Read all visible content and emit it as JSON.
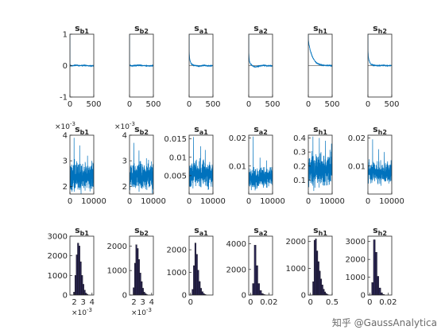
{
  "watermark": "知乎 @GaussAnalytica",
  "colors": {
    "trace": "#0072BD",
    "hist": "#2a2552",
    "axis": "#262626"
  },
  "chart_data": [
    {
      "type": "line",
      "panel": "acf",
      "title_main": "s",
      "title_sub": "b1",
      "xlim": [
        0,
        500
      ],
      "ylim": [
        -1,
        1
      ],
      "xticks": [
        0,
        500
      ],
      "yticks": [
        -1,
        0,
        1
      ],
      "lags": [
        0,
        1,
        2,
        5,
        10,
        20,
        50,
        100,
        200,
        300,
        400,
        500
      ],
      "acf": [
        1,
        0.04,
        0.02,
        0.01,
        0,
        0,
        -0.01,
        0.01,
        0,
        0.01,
        -0.01,
        0
      ]
    },
    {
      "type": "line",
      "panel": "acf",
      "title_main": "s",
      "title_sub": "b2",
      "xlim": [
        0,
        500
      ],
      "ylim": [
        -1,
        1
      ],
      "xticks": [
        0,
        500
      ],
      "yticks": [],
      "lags": [
        0,
        1,
        2,
        5,
        10,
        20,
        50,
        100,
        200,
        300,
        400,
        500
      ],
      "acf": [
        1,
        0.03,
        0.01,
        0,
        0.01,
        0,
        -0.01,
        0,
        0.01,
        0,
        -0.01,
        0
      ]
    },
    {
      "type": "line",
      "panel": "acf",
      "title_main": "s",
      "title_sub": "a1",
      "xlim": [
        0,
        500
      ],
      "ylim": [
        -1,
        1
      ],
      "xticks": [
        0,
        500
      ],
      "yticks": [],
      "lags": [
        0,
        1,
        5,
        10,
        20,
        40,
        60,
        100,
        150,
        200,
        300,
        400,
        500
      ],
      "acf": [
        1,
        0.5,
        0.35,
        0.25,
        0.15,
        0.07,
        0.03,
        0.01,
        0,
        -0.02,
        0.01,
        -0.01,
        0
      ]
    },
    {
      "type": "line",
      "panel": "acf",
      "title_main": "s",
      "title_sub": "a2",
      "xlim": [
        0,
        500
      ],
      "ylim": [
        -1,
        1
      ],
      "xticks": [
        0,
        500
      ],
      "yticks": [],
      "lags": [
        0,
        1,
        5,
        10,
        20,
        40,
        60,
        100,
        150,
        200,
        300,
        400,
        500
      ],
      "acf": [
        1,
        0.45,
        0.3,
        0.2,
        0.12,
        0.05,
        0.02,
        -0.03,
        -0.04,
        -0.02,
        0.01,
        -0.01,
        0
      ]
    },
    {
      "type": "line",
      "panel": "acf",
      "title_main": "s",
      "title_sub": "h1",
      "xlim": [
        0,
        500
      ],
      "ylim": [
        -1,
        1
      ],
      "xticks": [
        0,
        500
      ],
      "yticks": [],
      "lags": [
        0,
        1,
        10,
        20,
        40,
        60,
        80,
        100,
        150,
        200,
        250,
        300,
        400,
        500
      ],
      "acf": [
        1,
        0.82,
        0.72,
        0.63,
        0.5,
        0.39,
        0.3,
        0.23,
        0.12,
        0.06,
        0.03,
        0.01,
        0,
        0
      ]
    },
    {
      "type": "line",
      "panel": "acf",
      "title_main": "s",
      "title_sub": "h2",
      "xlim": [
        0,
        500
      ],
      "ylim": [
        -1,
        1
      ],
      "xticks": [
        0,
        500
      ],
      "yticks": [],
      "lags": [
        0,
        1,
        5,
        10,
        20,
        40,
        60,
        100,
        150,
        200,
        300,
        400,
        500
      ],
      "acf": [
        1,
        0.5,
        0.38,
        0.28,
        0.18,
        0.1,
        0.05,
        0.02,
        0.01,
        0,
        0.01,
        0,
        0
      ]
    },
    {
      "type": "line",
      "panel": "trace",
      "title_main": "s",
      "title_sub": "b1",
      "xlim": [
        0,
        10000
      ],
      "ylim": [
        1.7,
        4
      ],
      "xticks": [
        0,
        10000
      ],
      "yticks": [
        2,
        3,
        4
      ],
      "exponent_label": "×10",
      "exponent_power": "-3",
      "base": 2.4,
      "spread": 0.45,
      "spike_values": [
        3.9,
        3.6,
        3.2
      ]
    },
    {
      "type": "line",
      "panel": "trace",
      "title_main": "s",
      "title_sub": "b2",
      "xlim": [
        0,
        10000
      ],
      "ylim": [
        1.7,
        4
      ],
      "xticks": [
        0,
        10000
      ],
      "yticks": [
        2,
        3,
        4
      ],
      "exponent_label": "×10",
      "exponent_power": "-3",
      "base": 2.4,
      "spread": 0.42,
      "spike_values": [
        3.7,
        3.4,
        3.1
      ]
    },
    {
      "type": "line",
      "panel": "trace",
      "title_main": "s",
      "title_sub": "a1",
      "xlim": [
        0,
        10000
      ],
      "ylim": [
        0,
        0.016
      ],
      "xticks": [
        0,
        10000
      ],
      "yticks": [
        0.005,
        0.01,
        0.015
      ],
      "ytick_labels": [
        "0.005",
        "0.01",
        "0.015"
      ],
      "base": 0.0055,
      "spread": 0.0028,
      "spike_values": [
        0.0155,
        0.013,
        0.012
      ]
    },
    {
      "type": "line",
      "panel": "trace",
      "title_main": "s",
      "title_sub": "a2",
      "xlim": [
        0,
        10000
      ],
      "ylim": [
        0,
        0.021
      ],
      "xticks": [
        0,
        10000
      ],
      "yticks": [
        0.01,
        0.02
      ],
      "ytick_labels": [
        "0.01",
        "0.02"
      ],
      "base": 0.0058,
      "spread": 0.0028,
      "spike_values": [
        0.0205,
        0.013,
        0.012
      ]
    },
    {
      "type": "line",
      "panel": "trace",
      "title_main": "s",
      "title_sub": "h1",
      "xlim": [
        0,
        10000
      ],
      "ylim": [
        0,
        0.42
      ],
      "xticks": [
        0,
        10000
      ],
      "yticks": [
        0.1,
        0.2,
        0.3,
        0.4
      ],
      "ytick_labels": [
        "0.1",
        "0.2",
        "0.3",
        "0.4"
      ],
      "base": 0.17,
      "spread": 0.09,
      "spike_values": [
        0.41,
        0.4,
        0.38,
        0.36
      ]
    },
    {
      "type": "line",
      "panel": "trace",
      "title_main": "s",
      "title_sub": "h2",
      "xlim": [
        0,
        10000
      ],
      "ylim": [
        0,
        0.021
      ],
      "xticks": [
        0,
        10000
      ],
      "yticks": [
        0.01,
        0.02
      ],
      "ytick_labels": [
        "0.01",
        "0.02"
      ],
      "base": 0.0075,
      "spread": 0.003,
      "spike_values": [
        0.0195,
        0.016,
        0.015
      ]
    },
    {
      "type": "bar",
      "panel": "hist",
      "title_main": "s",
      "title_sub": "b1",
      "xlim": [
        1.5,
        4.2
      ],
      "ylim": [
        0,
        3000
      ],
      "xticks": [
        2,
        3,
        4
      ],
      "xtick_labels": [
        "2",
        "3",
        "4"
      ],
      "yticks": [
        0,
        1000,
        2000,
        3000
      ],
      "ytick_labels": [
        "0",
        "1000",
        "2000",
        "3000"
      ],
      "exponent_label": "×10",
      "exponent_power": "-3",
      "bin_edges": [
        1.9,
        2.05,
        2.2,
        2.35,
        2.5,
        2.65,
        2.8,
        2.95,
        3.1,
        3.25,
        3.4,
        3.55
      ],
      "counts": [
        150,
        1000,
        2050,
        2650,
        2500,
        1700,
        1000,
        550,
        250,
        100,
        40
      ]
    },
    {
      "type": "bar",
      "panel": "hist",
      "title_main": "s",
      "title_sub": "b2",
      "xlim": [
        1.5,
        4.2
      ],
      "ylim": [
        0,
        2400
      ],
      "xticks": [
        2,
        3,
        4
      ],
      "xtick_labels": [
        "2",
        "3",
        "4"
      ],
      "yticks": [
        0,
        1000,
        2000
      ],
      "ytick_labels": [
        "0",
        "1000",
        "2000"
      ],
      "exponent_label": "×10",
      "exponent_power": "-3",
      "bin_edges": [
        1.9,
        2.05,
        2.2,
        2.35,
        2.5,
        2.65,
        2.8,
        2.95,
        3.1,
        3.25,
        3.4,
        3.55
      ],
      "counts": [
        300,
        1300,
        2050,
        1900,
        1450,
        900,
        550,
        280,
        120,
        60,
        20
      ]
    },
    {
      "type": "bar",
      "panel": "hist",
      "title_main": "s",
      "title_sub": "a1",
      "xlim": [
        -0.001,
        0.016
      ],
      "ylim": [
        0,
        2600
      ],
      "xticks": [
        0
      ],
      "xtick_labels": [
        "0"
      ],
      "yticks": [
        0,
        1000,
        2000
      ],
      "ytick_labels": [
        "0",
        "1000",
        "2000"
      ],
      "bin_edges": [
        0.001,
        0.002,
        0.003,
        0.004,
        0.005,
        0.006,
        0.007,
        0.008,
        0.009,
        0.01,
        0.011
      ],
      "counts": [
        250,
        1300,
        2300,
        1800,
        1100,
        600,
        300,
        150,
        70,
        30
      ]
    },
    {
      "type": "bar",
      "panel": "hist",
      "title_main": "s",
      "title_sub": "a2",
      "xlim": [
        -0.002,
        0.024
      ],
      "ylim": [
        0,
        4600
      ],
      "xticks": [
        0,
        0.02
      ],
      "xtick_labels": [
        "0",
        "0.02"
      ],
      "yticks": [
        0,
        2000,
        4000
      ],
      "ytick_labels": [
        "0",
        "2000",
        "4000"
      ],
      "bin_edges": [
        0.002,
        0.004,
        0.006,
        0.008,
        0.01,
        0.012,
        0.014,
        0.016
      ],
      "counts": [
        900,
        3900,
        2300,
        900,
        350,
        120,
        40
      ]
    },
    {
      "type": "bar",
      "panel": "hist",
      "title_main": "s",
      "title_sub": "h1",
      "xlim": [
        -0.05,
        0.5
      ],
      "ylim": [
        0,
        2200
      ],
      "xticks": [
        0,
        0.5
      ],
      "xtick_labels": [
        "0",
        "0.5"
      ],
      "yticks": [
        0,
        1000,
        2000
      ],
      "ytick_labels": [
        "0",
        "1000",
        "2000"
      ],
      "bin_edges": [
        0.05,
        0.08,
        0.11,
        0.14,
        0.17,
        0.2,
        0.23,
        0.26,
        0.29,
        0.32,
        0.35,
        0.38,
        0.41
      ],
      "counts": [
        500,
        2050,
        2100,
        1650,
        1250,
        900,
        600,
        380,
        220,
        120,
        60,
        25
      ]
    },
    {
      "type": "bar",
      "panel": "hist",
      "title_main": "s",
      "title_sub": "h2",
      "xlim": [
        -0.002,
        0.024
      ],
      "ylim": [
        0,
        3300
      ],
      "xticks": [
        0,
        0.02
      ],
      "xtick_labels": [
        "0",
        "0.02"
      ],
      "yticks": [
        0,
        1000,
        2000,
        3000
      ],
      "ytick_labels": [
        "0",
        "1000",
        "2000",
        "3000"
      ],
      "bin_edges": [
        0.002,
        0.004,
        0.006,
        0.008,
        0.01,
        0.012,
        0.014,
        0.016
      ],
      "counts": [
        700,
        3100,
        2400,
        1050,
        400,
        130,
        40
      ]
    }
  ]
}
